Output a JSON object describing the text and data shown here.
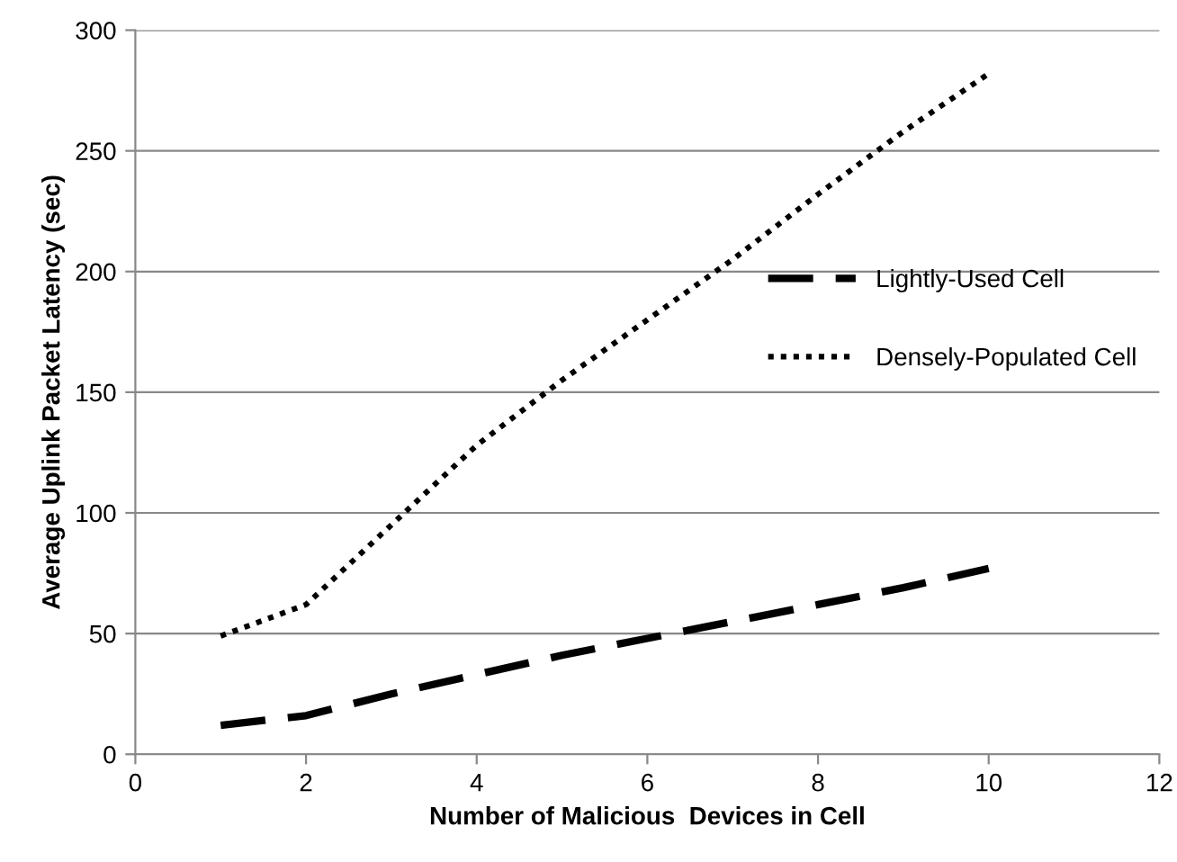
{
  "chart_data": {
    "type": "line",
    "xlabel": "Number of Malicious  Devices in Cell",
    "ylabel": "Average Uplink Packet Latency (sec)",
    "x": [
      1,
      2,
      3,
      4,
      5,
      6,
      7,
      8,
      9,
      10
    ],
    "series": [
      {
        "name": "Lightly-Used Cell",
        "color": "#000000",
        "line_style": "dashed",
        "values": [
          12,
          16,
          25,
          33,
          41,
          48,
          55,
          62,
          69,
          77
        ]
      },
      {
        "name": "Densely-Populated Cell",
        "color": "#000000",
        "line_style": "dotted",
        "values": [
          49,
          62,
          95,
          128,
          155,
          180,
          205,
          232,
          258,
          282
        ]
      }
    ],
    "xlim": [
      0,
      12
    ],
    "xticks": [
      0,
      2,
      4,
      6,
      8,
      10,
      12
    ],
    "ylim": [
      0,
      300
    ],
    "yticks": [
      0,
      50,
      100,
      150,
      200,
      250,
      300
    ],
    "grid": "y",
    "legend": "right",
    "marker": "none"
  }
}
